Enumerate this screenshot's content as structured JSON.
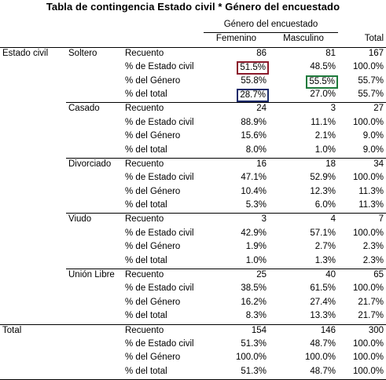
{
  "title": "Tabla de contingencia Estado civil * Género del encuestado",
  "header": {
    "gender_group": "Género del encuestado",
    "col_femenino": "Femenino",
    "col_masculino": "Masculino",
    "col_total": "Total"
  },
  "row_var": "Estado civil",
  "measures": {
    "count": "Recuento",
    "pct_row": "% de Estado civil",
    "pct_col": "% del Género",
    "pct_total": "% del total"
  },
  "groups": [
    {
      "label": "Soltero",
      "rows": [
        {
          "f": "86",
          "m": "81",
          "t": "167"
        },
        {
          "f": "51.5%",
          "m": "48.5%",
          "t": "100.0%"
        },
        {
          "f": "55.8%",
          "m": "55.5%",
          "t": "55.7%"
        },
        {
          "f": "28.7%",
          "m": "27.0%",
          "t": "55.7%"
        }
      ]
    },
    {
      "label": "Casado",
      "rows": [
        {
          "f": "24",
          "m": "3",
          "t": "27"
        },
        {
          "f": "88.9%",
          "m": "11.1%",
          "t": "100.0%"
        },
        {
          "f": "15.6%",
          "m": "2.1%",
          "t": "9.0%"
        },
        {
          "f": "8.0%",
          "m": "1.0%",
          "t": "9.0%"
        }
      ]
    },
    {
      "label": "Divorciado",
      "rows": [
        {
          "f": "16",
          "m": "18",
          "t": "34"
        },
        {
          "f": "47.1%",
          "m": "52.9%",
          "t": "100.0%"
        },
        {
          "f": "10.4%",
          "m": "12.3%",
          "t": "11.3%"
        },
        {
          "f": "5.3%",
          "m": "6.0%",
          "t": "11.3%"
        }
      ]
    },
    {
      "label": "Viudo",
      "rows": [
        {
          "f": "3",
          "m": "4",
          "t": "7"
        },
        {
          "f": "42.9%",
          "m": "57.1%",
          "t": "100.0%"
        },
        {
          "f": "1.9%",
          "m": "2.7%",
          "t": "2.3%"
        },
        {
          "f": "1.0%",
          "m": "1.3%",
          "t": "2.3%"
        }
      ]
    },
    {
      "label": "Unión Libre",
      "rows": [
        {
          "f": "25",
          "m": "40",
          "t": "65"
        },
        {
          "f": "38.5%",
          "m": "61.5%",
          "t": "100.0%"
        },
        {
          "f": "16.2%",
          "m": "27.4%",
          "t": "21.7%"
        },
        {
          "f": "8.3%",
          "m": "13.3%",
          "t": "21.7%"
        }
      ]
    }
  ],
  "total": {
    "label": "Total",
    "rows": [
      {
        "f": "154",
        "m": "146",
        "t": "300"
      },
      {
        "f": "51.3%",
        "m": "48.7%",
        "t": "100.0%"
      },
      {
        "f": "100.0%",
        "m": "100.0%",
        "t": "100.0%"
      },
      {
        "f": "51.3%",
        "m": "48.7%",
        "t": "100.0%"
      }
    ]
  },
  "highlights": {
    "red": "#8b1a2b",
    "green": "#1f7a3c",
    "navy": "#1a2b6b"
  }
}
